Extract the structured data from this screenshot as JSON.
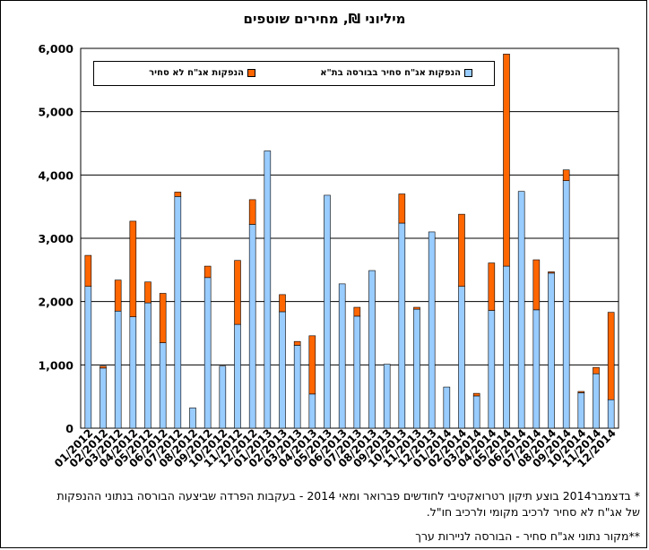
{
  "chart_data": {
    "type": "bar",
    "stacked": true,
    "title": "מיליוני ₪, מחירים שוטפים",
    "ylim": [
      0,
      6000
    ],
    "yticks": [
      "0",
      "1,000",
      "2,000",
      "3,000",
      "4,000",
      "5,000",
      "6,000"
    ],
    "grid": true,
    "legend_position": "top",
    "categories": [
      "01/2012",
      "02/2012",
      "03/2012",
      "04/2012",
      "05/2012",
      "06/2012",
      "07/2012",
      "08/2012",
      "09/2012",
      "10/2012",
      "11/2012",
      "12/2012",
      "01/2013",
      "02/2013",
      "03/2013",
      "04/2013",
      "05/2013",
      "06/2013",
      "07/2013",
      "08/2013",
      "09/2013",
      "10/2013",
      "11/2013",
      "12/2013",
      "01/2014",
      "02/2014",
      "03/2014",
      "04/2014",
      "05/2014",
      "06/2014",
      "07/2014",
      "08/2014",
      "09/2014",
      "10/2014",
      "11/2014",
      "12/2014"
    ],
    "series": [
      {
        "name": "הנפקות אג\"ח סחיר בבורסה בת\"א",
        "color": "#99CCFF",
        "values": [
          2240,
          950,
          1850,
          1760,
          1980,
          1350,
          3660,
          320,
          2380,
          980,
          1640,
          3220,
          4380,
          1840,
          1310,
          540,
          3680,
          2280,
          1770,
          2490,
          1010,
          3240,
          1880,
          3100,
          650,
          2240,
          510,
          1860,
          2560,
          3740,
          1870,
          2450,
          3910,
          560,
          860,
          450
        ]
      },
      {
        "name": "הנפקות אג\"ח לא סחיר",
        "color": "#FF6600",
        "values": [
          490,
          30,
          490,
          1510,
          330,
          780,
          70,
          0,
          180,
          0,
          1010,
          390,
          0,
          270,
          60,
          920,
          0,
          0,
          140,
          0,
          0,
          460,
          30,
          0,
          0,
          1140,
          40,
          750,
          3350,
          0,
          790,
          20,
          170,
          20,
          100,
          1380
        ]
      }
    ]
  },
  "footnotes": {
    "line1": "* בדצמבר2014 בוצע תיקון רטרואקטיבי לחודשים פברואר ומאי 2014 - בעקבות הפרדה שביצעה הבורסה בנתוני ההנפקות",
    "line2": "של אג\"ח לא סחיר לרכיב מקומי ולרכיב חו\"ל.",
    "source": "**מקור נתוני אג\"ח סחיר - הבורסה לניירות ערך"
  }
}
